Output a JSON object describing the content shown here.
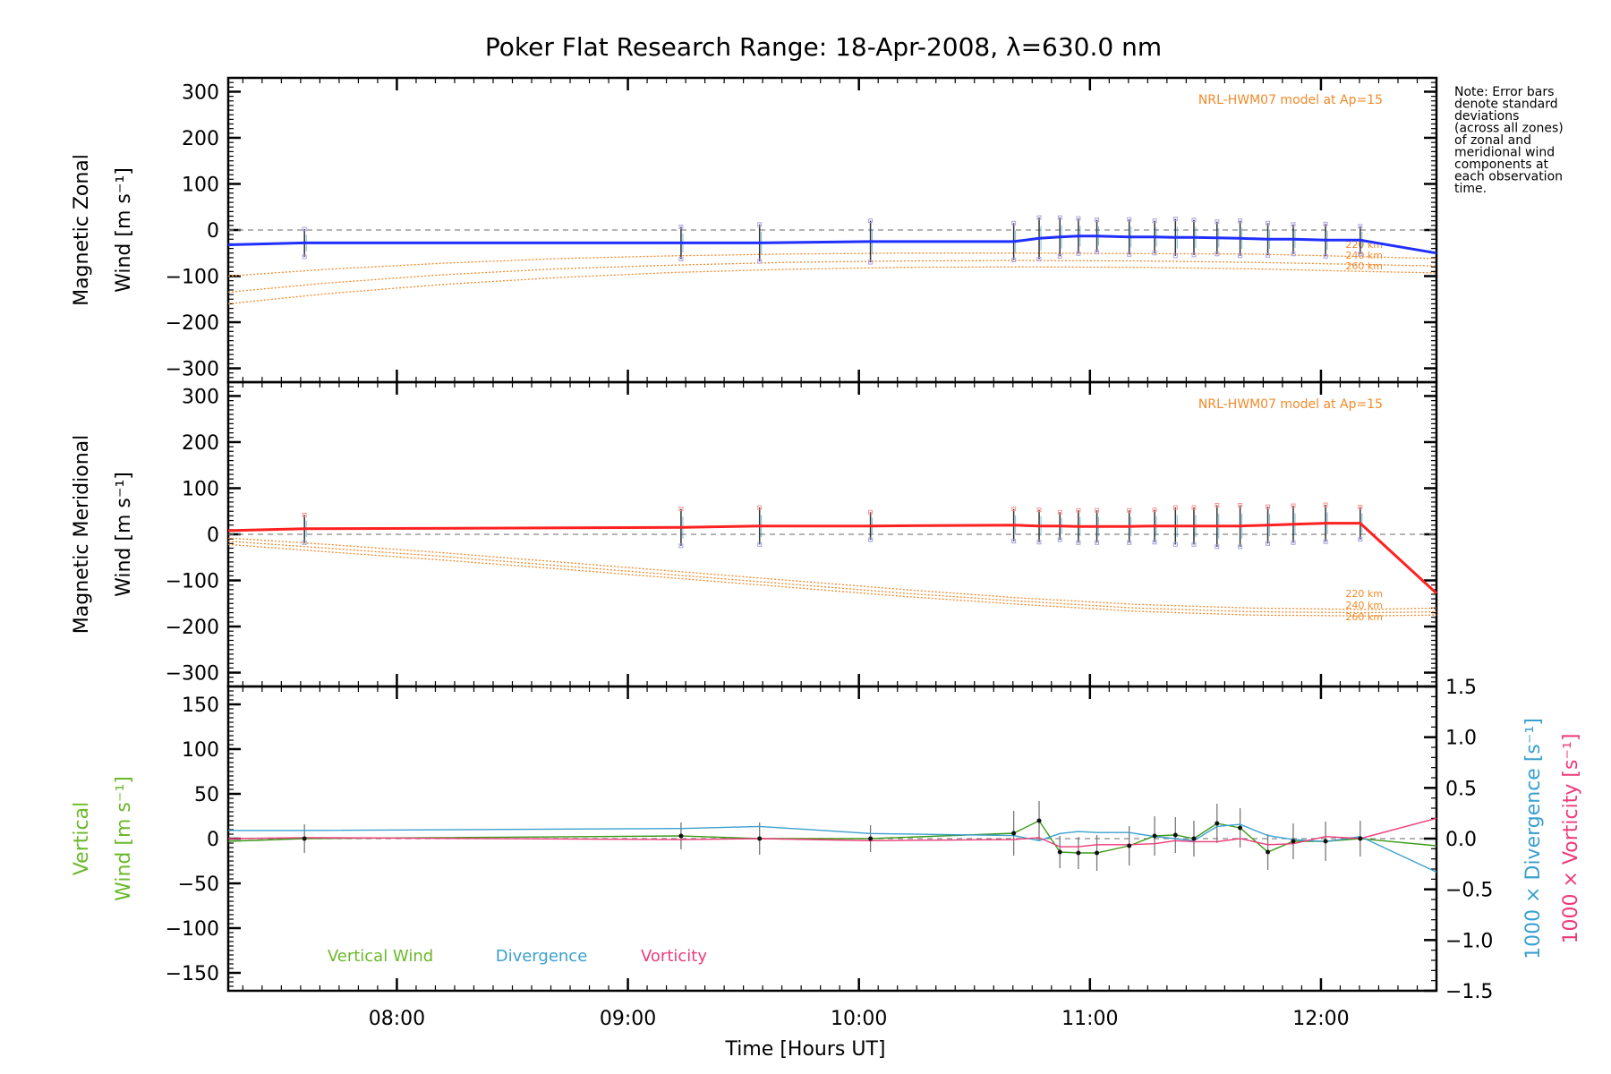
{
  "title": "Poker Flat Research Range: 18-Apr-2008, λ=630.0 nm",
  "note": [
    "Note: Error bars",
    "denote standard",
    "deviations",
    "(across all zones)",
    "of zonal and",
    "meridional wind",
    "components at",
    "each observation",
    "time."
  ],
  "colors": {
    "zonal": "#1f2fff",
    "meridional": "#ff2020",
    "model": "#f08a2a",
    "vertical": "#3a9a1a",
    "vertical_label": "#6ab82a",
    "divergence": "#3aa0d0",
    "vorticity": "#ee3a7a",
    "errorbar": "#333333",
    "zero_line": "#888888"
  },
  "chart_data": [
    {
      "id": "zonal",
      "type": "line",
      "ylabel_line1": "Magnetic Zonal",
      "ylabel_line2": "Wind [m s⁻¹]",
      "ylim": [
        -330,
        330
      ],
      "yticks": [
        300,
        200,
        100,
        0,
        -100,
        -200,
        -300
      ],
      "ytick_labels": [
        "300",
        "200",
        "100",
        "0",
        "−100",
        "−200",
        "−300"
      ],
      "model_label": "NRL-HWM07 model at Ap=15",
      "altitude_labels": [
        "220 km",
        "240 km",
        "260 km"
      ],
      "obs_times": [
        7.6,
        9.23,
        9.57,
        10.05,
        10.67,
        10.78,
        10.87,
        10.95,
        11.03,
        11.17,
        11.28,
        11.37,
        11.45,
        11.55,
        11.65,
        11.77,
        11.88,
        12.02,
        12.17
      ],
      "series": [
        {
          "name": "Magnetic Zonal Wind",
          "x": [
            7.27,
            7.6,
            9.23,
            9.57,
            10.05,
            10.67,
            10.78,
            10.87,
            10.95,
            11.03,
            11.17,
            11.28,
            11.37,
            11.45,
            11.55,
            11.65,
            11.77,
            11.88,
            12.02,
            12.17,
            12.5
          ],
          "y": [
            -32,
            -28,
            -28,
            -28,
            -25,
            -25,
            -18,
            -15,
            -13,
            -13,
            -15,
            -15,
            -16,
            -16,
            -17,
            -18,
            -20,
            -20,
            -22,
            -22,
            -50
          ]
        }
      ],
      "errors": [
        30,
        35,
        40,
        45,
        40,
        45,
        42,
        38,
        35,
        38,
        35,
        40,
        38,
        35,
        38,
        35,
        32,
        35,
        30
      ],
      "model_series": [
        {
          "altitude": "220 km",
          "x": [
            7.27,
            7.7,
            8.2,
            8.7,
            9.2,
            9.7,
            10.2,
            10.7,
            11.2,
            11.7,
            12.2,
            12.5
          ],
          "y": [
            -100,
            -85,
            -72,
            -62,
            -56,
            -52,
            -50,
            -50,
            -51,
            -52,
            -58,
            -62
          ]
        },
        {
          "altitude": "240 km",
          "x": [
            7.27,
            7.7,
            8.2,
            8.7,
            9.2,
            9.7,
            10.2,
            10.7,
            11.2,
            11.7,
            12.2,
            12.5
          ],
          "y": [
            -135,
            -115,
            -97,
            -84,
            -76,
            -70,
            -67,
            -66,
            -67,
            -70,
            -75,
            -78
          ]
        },
        {
          "altitude": "260 km",
          "x": [
            7.27,
            7.7,
            8.2,
            8.7,
            9.2,
            9.7,
            10.2,
            10.7,
            11.2,
            11.7,
            12.2,
            12.5
          ],
          "y": [
            -160,
            -138,
            -118,
            -103,
            -92,
            -85,
            -81,
            -80,
            -81,
            -84,
            -90,
            -93
          ]
        }
      ]
    },
    {
      "id": "meridional",
      "type": "line",
      "ylabel_line1": "Magnetic Meridional",
      "ylabel_line2": "Wind [m s⁻¹]",
      "ylim": [
        -330,
        330
      ],
      "yticks": [
        300,
        200,
        100,
        0,
        -100,
        -200,
        -300
      ],
      "ytick_labels": [
        "300",
        "200",
        "100",
        "0",
        "−100",
        "−200",
        "−300"
      ],
      "model_label": "NRL-HWM07 model at Ap=15",
      "altitude_labels": [
        "220 km",
        "240 km",
        "260 km"
      ],
      "obs_times": [
        7.6,
        9.23,
        9.57,
        10.05,
        10.67,
        10.78,
        10.87,
        10.95,
        11.03,
        11.17,
        11.28,
        11.37,
        11.45,
        11.55,
        11.65,
        11.77,
        11.88,
        12.02,
        12.17
      ],
      "series": [
        {
          "name": "Magnetic Meridional Wind",
          "x": [
            7.27,
            7.6,
            9.23,
            9.57,
            10.05,
            10.67,
            10.78,
            10.87,
            10.95,
            11.03,
            11.17,
            11.28,
            11.37,
            11.45,
            11.55,
            11.65,
            11.77,
            11.88,
            12.02,
            12.17,
            12.5
          ],
          "y": [
            8,
            12,
            15,
            18,
            18,
            20,
            18,
            18,
            17,
            17,
            17,
            18,
            18,
            18,
            18,
            18,
            20,
            22,
            24,
            24,
            -128
          ]
        }
      ],
      "errors": [
        30,
        40,
        40,
        30,
        35,
        35,
        30,
        35,
        35,
        35,
        35,
        40,
        40,
        45,
        45,
        40,
        40,
        40,
        35
      ],
      "model_series": [
        {
          "altitude": "220 km",
          "x": [
            7.27,
            7.7,
            8.2,
            8.7,
            9.2,
            9.7,
            10.2,
            10.7,
            11.2,
            11.7,
            12.2,
            12.5
          ],
          "y": [
            -8,
            -22,
            -40,
            -60,
            -80,
            -100,
            -120,
            -138,
            -152,
            -160,
            -163,
            -160
          ]
        },
        {
          "altitude": "240 km",
          "x": [
            7.27,
            7.7,
            8.2,
            8.7,
            9.2,
            9.7,
            10.2,
            10.7,
            11.2,
            11.7,
            12.2,
            12.5
          ],
          "y": [
            -15,
            -30,
            -48,
            -68,
            -88,
            -108,
            -128,
            -145,
            -160,
            -168,
            -170,
            -168
          ]
        },
        {
          "altitude": "260 km",
          "x": [
            7.27,
            7.7,
            8.2,
            8.7,
            9.2,
            9.7,
            10.2,
            10.7,
            11.2,
            11.7,
            12.2,
            12.5
          ],
          "y": [
            -22,
            -38,
            -56,
            -75,
            -95,
            -115,
            -135,
            -152,
            -167,
            -175,
            -177,
            -175
          ]
        }
      ]
    },
    {
      "id": "vertical",
      "type": "line",
      "ylabel_line1": "Vertical",
      "ylabel_line2": "Wind [m s⁻¹]",
      "ylim": [
        -170,
        170
      ],
      "yticks": [
        150,
        100,
        50,
        0,
        -50,
        -100,
        -150
      ],
      "ytick_labels": [
        "150",
        "100",
        "50",
        "0",
        "−50",
        "−100",
        "−150"
      ],
      "right_ylim": [
        -1.5,
        1.5
      ],
      "right_yticks": [
        1.5,
        1.0,
        0.5,
        0.0,
        -0.5,
        -1.0,
        -1.5
      ],
      "right_ytick_labels": [
        "1.5",
        "1.0",
        "0.5",
        "0.0",
        "−0.5",
        "−1.0",
        "−1.5"
      ],
      "right_label_div": "1000 × Divergence [s⁻¹]",
      "right_label_vort": "1000 × Vorticity [s⁻¹]",
      "xlabel": "Time [Hours UT]",
      "xticks": [
        8,
        9,
        10,
        11,
        12
      ],
      "xtick_labels": [
        "08:00",
        "09:00",
        "10:00",
        "11:00",
        "12:00"
      ],
      "xlim": [
        7.27,
        12.5
      ],
      "obs_times": [
        7.6,
        9.23,
        9.57,
        10.05,
        10.67,
        10.78,
        10.87,
        10.95,
        11.03,
        11.17,
        11.28,
        11.37,
        11.45,
        11.55,
        11.65,
        11.77,
        11.88,
        12.02,
        12.17
      ],
      "errors": [
        16,
        15,
        18,
        15,
        25,
        22,
        18,
        18,
        20,
        22,
        22,
        20,
        20,
        22,
        22,
        20,
        20,
        22,
        20
      ],
      "legend": [
        "Vertical Wind",
        "Divergence",
        "Vorticity"
      ],
      "series": [
        {
          "name": "Vertical Wind",
          "x": [
            7.27,
            7.6,
            9.23,
            9.57,
            10.05,
            10.67,
            10.78,
            10.87,
            10.95,
            11.03,
            11.17,
            11.28,
            11.37,
            11.45,
            11.55,
            11.65,
            11.77,
            11.88,
            12.02,
            12.17,
            12.5
          ],
          "y": [
            -3,
            0,
            3,
            0,
            0,
            6,
            20,
            -15,
            -16,
            -16,
            -8,
            3,
            4,
            0,
            17,
            12,
            -15,
            -3,
            -3,
            0,
            -8
          ]
        },
        {
          "name": "Divergence",
          "x": [
            7.27,
            7.6,
            9.23,
            9.57,
            10.05,
            10.67,
            10.78,
            10.87,
            10.95,
            11.03,
            11.17,
            11.28,
            11.37,
            11.45,
            11.55,
            11.65,
            11.77,
            11.88,
            12.02,
            12.17,
            12.5
          ],
          "y": [
            0.08,
            0.08,
            0.1,
            0.12,
            0.05,
            0.03,
            -0.02,
            0.05,
            0.07,
            0.06,
            0.06,
            0.02,
            0.0,
            -0.02,
            0.12,
            0.14,
            0.03,
            -0.01,
            -0.03,
            0.02,
            -0.33
          ]
        },
        {
          "name": "Vorticity",
          "x": [
            7.27,
            7.6,
            9.23,
            9.57,
            10.05,
            10.67,
            10.78,
            10.87,
            10.95,
            11.03,
            11.17,
            11.28,
            11.37,
            11.45,
            11.55,
            11.65,
            11.77,
            11.88,
            12.02,
            12.17,
            12.5
          ],
          "y": [
            0.0,
            0.01,
            -0.01,
            0.0,
            -0.02,
            -0.01,
            0.01,
            -0.08,
            -0.08,
            -0.06,
            -0.06,
            -0.05,
            -0.02,
            -0.03,
            -0.03,
            0.0,
            -0.06,
            -0.05,
            0.02,
            0.0,
            0.2
          ]
        }
      ]
    }
  ]
}
